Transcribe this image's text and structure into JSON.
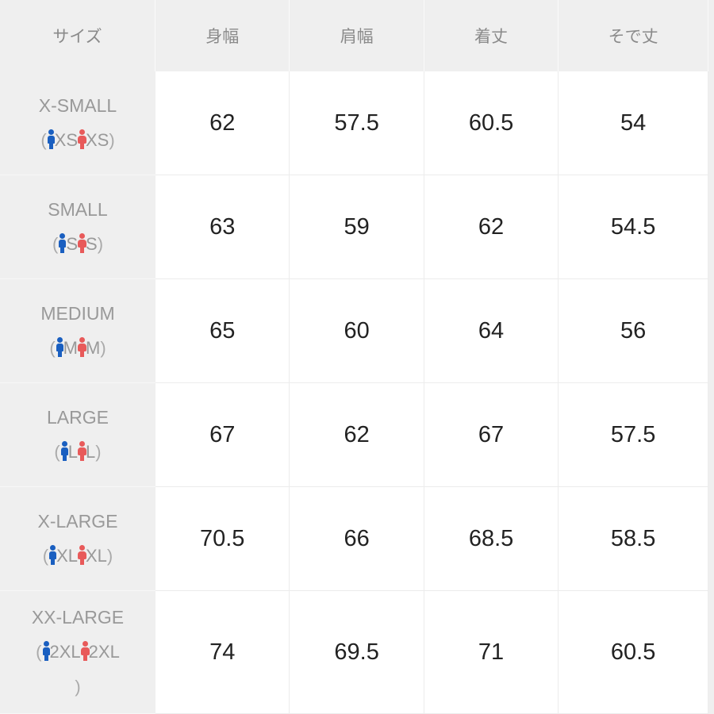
{
  "headers": [
    "サイズ",
    "身幅",
    "肩幅",
    "着丈",
    "そで丈"
  ],
  "colors": {
    "male_icon": "#1a5fc0",
    "female_icon": "#e85a5a"
  },
  "rows": [
    {
      "size": "X-SMALL",
      "male": "XS",
      "female": "XS",
      "values": [
        "62",
        "57.5",
        "60.5",
        "54"
      ]
    },
    {
      "size": "SMALL",
      "male": "S",
      "female": "S",
      "values": [
        "63",
        "59",
        "62",
        "54.5"
      ]
    },
    {
      "size": "MEDIUM",
      "male": "M",
      "female": "M",
      "values": [
        "65",
        "60",
        "64",
        "56"
      ]
    },
    {
      "size": "LARGE",
      "male": "L",
      "female": "L",
      "values": [
        "67",
        "62",
        "67",
        "57.5"
      ]
    },
    {
      "size": "X-LARGE",
      "male": "XL",
      "female": "XL",
      "values": [
        "70.5",
        "66",
        "68.5",
        "58.5"
      ]
    },
    {
      "size": "XX-LARGE",
      "male": "2XL",
      "female": "2XL",
      "values": [
        "74",
        "69.5",
        "71",
        "60.5"
      ]
    }
  ]
}
